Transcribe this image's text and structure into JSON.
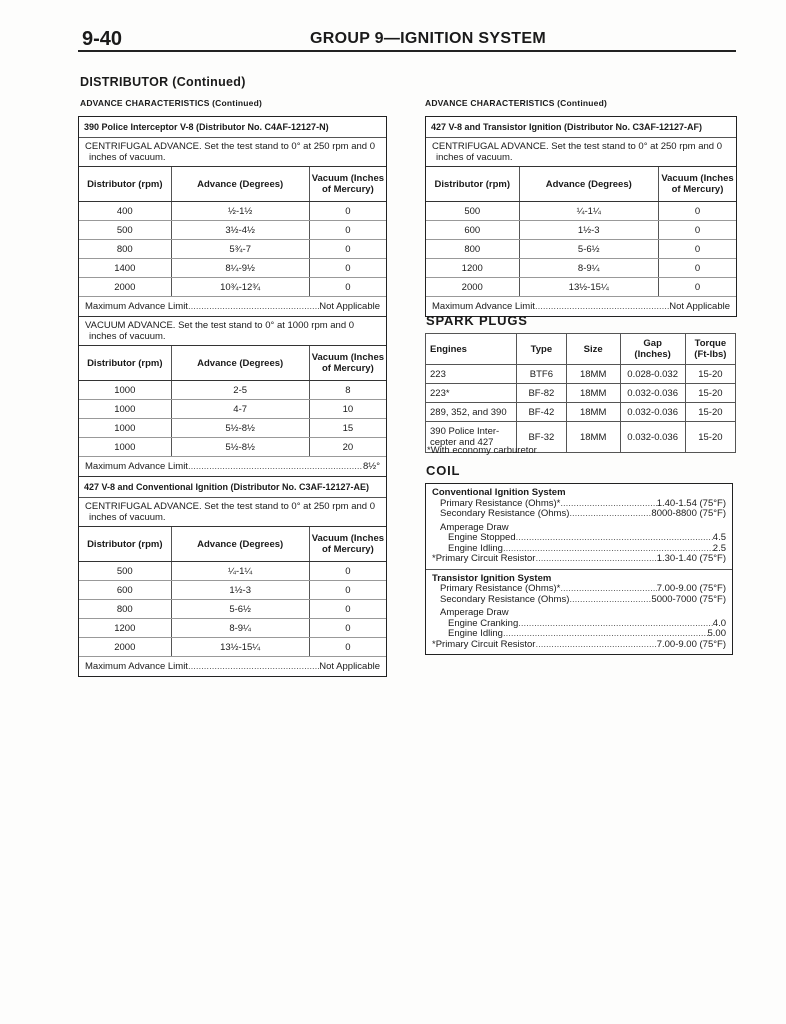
{
  "header": {
    "page_number": "9-40",
    "group_title": "GROUP 9—IGNITION SYSTEM"
  },
  "section_title": "DISTRIBUTOR (Continued)",
  "left_subtitle": "ADVANCE CHARACTERISTICS (Continued)",
  "right_subtitle": "ADVANCE CHARACTERISTICS (Continued)",
  "col_headers": [
    "Distributor (rpm)",
    "Advance (Degrees)",
    "Vacuum (Inches of Mercury)"
  ],
  "limit_label": "Maximum Advance Limit",
  "left_box": [
    {
      "title": "390 Police Interceptor V-8 (Distributor No. C4AF-12127-N)",
      "description": "CENTRIFUGAL ADVANCE. Set the test stand to 0° at 250 rpm and 0 inches of vacuum.",
      "rows": [
        [
          "400",
          "½-1½",
          "0"
        ],
        [
          "500",
          "3½-4½",
          "0"
        ],
        [
          "800",
          "5¾-7",
          "0"
        ],
        [
          "1400",
          "8¼-9½",
          "0"
        ],
        [
          "2000",
          "10¾-12¾",
          "0"
        ]
      ],
      "limit": "Not Applicable"
    },
    {
      "title": "",
      "description": "VACUUM ADVANCE. Set the test stand to 0° at 1000 rpm and 0 inches of vacuum.",
      "rows": [
        [
          "1000",
          "2-5",
          "8"
        ],
        [
          "1000",
          "4-7",
          "10"
        ],
        [
          "1000",
          "5½-8½",
          "15"
        ],
        [
          "1000",
          "5½-8½",
          "20"
        ]
      ],
      "limit": "8½°"
    },
    {
      "title": "427 V-8 and Conventional Ignition (Distributor No. C3AF-12127-AE)",
      "description": "CENTRIFUGAL ADVANCE. Set the test stand to 0° at 250 rpm and 0 inches of vacuum.",
      "rows": [
        [
          "500",
          "¼-1¼",
          "0"
        ],
        [
          "600",
          "1½-3",
          "0"
        ],
        [
          "800",
          "5-6½",
          "0"
        ],
        [
          "1200",
          "8-9¼",
          "0"
        ],
        [
          "2000",
          "13½-15¼",
          "0"
        ]
      ],
      "limit": "Not Applicable"
    }
  ],
  "right_box": [
    {
      "title": "427 V-8 and Transistor Ignition (Distributor No. C3AF-12127-AF)",
      "description": "CENTRIFUGAL ADVANCE. Set the test stand to 0° at 250 rpm and 0 inches of vacuum.",
      "rows": [
        [
          "500",
          "¼-1¼",
          "0"
        ],
        [
          "600",
          "1½-3",
          "0"
        ],
        [
          "800",
          "5-6½",
          "0"
        ],
        [
          "1200",
          "8-9¼",
          "0"
        ],
        [
          "2000",
          "13½-15¼",
          "0"
        ]
      ],
      "limit": "Not Applicable"
    }
  ],
  "spark_plugs": {
    "title": "SPARK PLUGS",
    "headers": [
      "Engines",
      "Type",
      "Size",
      "Gap (Inches)",
      "Torque (Ft-lbs)"
    ],
    "rows": [
      [
        "223",
        "BTF6",
        "18MM",
        "0.028-0.032",
        "15-20"
      ],
      [
        "223*",
        "BF-82",
        "18MM",
        "0.032-0.036",
        "15-20"
      ],
      [
        "289, 352, and 390",
        "BF-42",
        "18MM",
        "0.032-0.036",
        "15-20"
      ],
      [
        "390 Police Inter-cepter and 427",
        "BF-32",
        "18MM",
        "0.032-0.036",
        "15-20"
      ]
    ],
    "footnote": "*With economy carburetor"
  },
  "coil": {
    "title": "COIL",
    "groups": [
      {
        "name": "Conventional Ignition System",
        "lines": [
          {
            "label": "Primary Resistance (Ohms)*",
            "value": "1.40-1.54 (75°F)",
            "indent": 1
          },
          {
            "label": "Secondary Resistance (Ohms)",
            "value": "8000-8800 (75°F)",
            "indent": 1
          },
          {
            "label": "Amperage Draw",
            "value": "",
            "indent": 1,
            "gap": true
          },
          {
            "label": "Engine Stopped",
            "value": "4.5",
            "indent": 2
          },
          {
            "label": "Engine Idling",
            "value": "2.5",
            "indent": 2
          },
          {
            "label": "*Primary Circuit Resistor",
            "value": "1.30-1.40 (75°F)",
            "indent": 0
          }
        ]
      },
      {
        "name": "Transistor Ignition System",
        "lines": [
          {
            "label": "Primary Resistance (Ohms)*",
            "value": "7.00-9.00 (75°F)",
            "indent": 1
          },
          {
            "label": "Secondary Resistance (Ohms)",
            "value": "5000-7000 (75°F)",
            "indent": 1
          },
          {
            "label": "Amperage Draw",
            "value": "",
            "indent": 1,
            "gap": true
          },
          {
            "label": "Engine Cranking",
            "value": "4.0",
            "indent": 2
          },
          {
            "label": "Engine Idling",
            "value": "5.00",
            "indent": 2
          },
          {
            "label": "*Primary Circuit Resistor",
            "value": "7.00-9.00 (75°F)",
            "indent": 0
          }
        ]
      }
    ]
  }
}
